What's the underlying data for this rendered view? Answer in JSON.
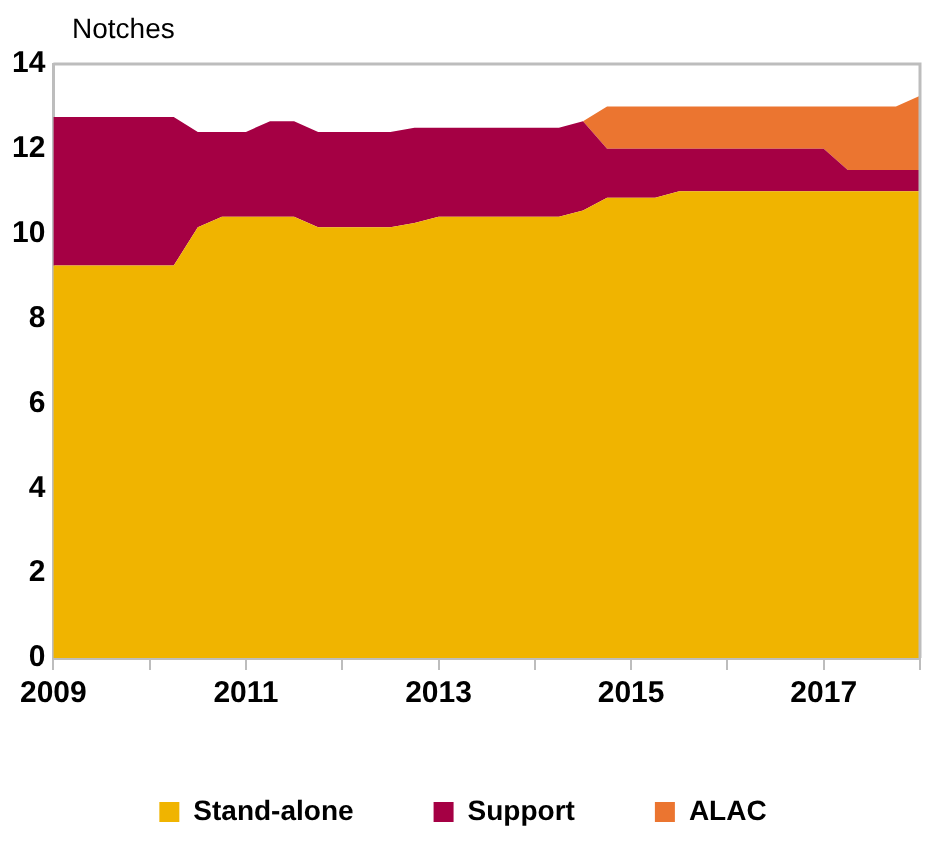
{
  "chart_data": {
    "type": "area",
    "ylabel": "Notches",
    "stacked": true,
    "x": [
      2009,
      2010.25,
      2010.5,
      2010.75,
      2011,
      2011.25,
      2011.5,
      2011.75,
      2012.5,
      2012.75,
      2013,
      2014.25,
      2014.5,
      2014.75,
      2015.25,
      2015.5,
      2017,
      2017.25,
      2017.75,
      2018
    ],
    "series": [
      {
        "name": "Stand-alone",
        "color": "#f0b400",
        "values": [
          9.25,
          9.25,
          10.15,
          10.4,
          10.4,
          10.4,
          10.4,
          10.15,
          10.15,
          10.25,
          10.4,
          10.4,
          10.55,
          10.85,
          10.85,
          11,
          11,
          11,
          11,
          11
        ]
      },
      {
        "name": "Support",
        "color": "#a50044",
        "values": [
          3.5,
          3.5,
          2.25,
          2.0,
          2.0,
          2.25,
          2.25,
          2.25,
          2.25,
          2.25,
          2.1,
          2.1,
          2.1,
          1.15,
          1.15,
          1.0,
          1.0,
          0.5,
          0.5,
          0.5
        ]
      },
      {
        "name": "ALAC",
        "color": "#eb7530",
        "values": [
          null,
          null,
          null,
          null,
          null,
          null,
          null,
          null,
          null,
          null,
          null,
          null,
          0,
          1.0,
          1.0,
          1.0,
          1.0,
          1.5,
          1.5,
          1.75
        ]
      }
    ],
    "xlim": [
      2009,
      2018
    ],
    "xticks": [
      2009,
      {
        "value": 2010,
        "label": null
      },
      2011,
      {
        "value": 2012,
        "label": null
      },
      2013,
      {
        "value": 2014,
        "label": null
      },
      2015,
      {
        "value": 2016,
        "label": null
      },
      2017,
      {
        "value": 2018,
        "label": null
      }
    ],
    "ylim": [
      0,
      14
    ],
    "yticks": [
      0,
      2,
      4,
      6,
      8,
      10,
      12,
      14
    ],
    "grid": false,
    "legend": "bottom",
    "marker": "none"
  }
}
